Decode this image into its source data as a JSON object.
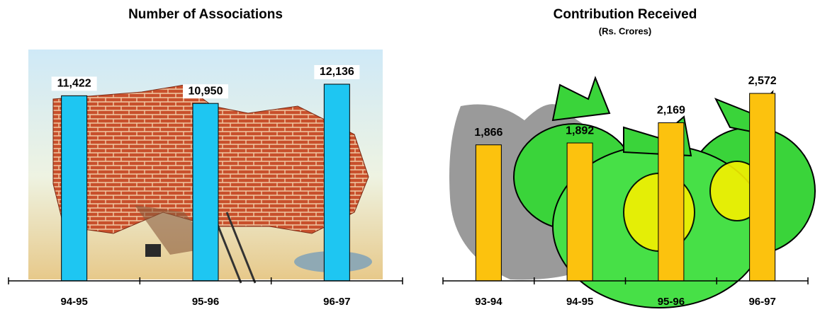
{
  "chart_data": [
    {
      "type": "bar",
      "title": "Number of Associations",
      "categories": [
        "94-95",
        "95-96",
        "96-97"
      ],
      "values": [
        11422,
        10950,
        12136
      ],
      "value_labels": [
        "11,422",
        "10,950",
        "12,136"
      ],
      "color": "#1ec6f2"
    },
    {
      "type": "bar",
      "title": "Contribution Received",
      "subtitle": "(Rs. Crores)",
      "categories": [
        "93-94",
        "94-95",
        "95-96",
        "96-97"
      ],
      "values": [
        1866,
        1892,
        2169,
        2572
      ],
      "value_labels": [
        "1,866",
        "1,892",
        "2,169",
        "2,572"
      ],
      "color": "#fcc20e"
    }
  ]
}
